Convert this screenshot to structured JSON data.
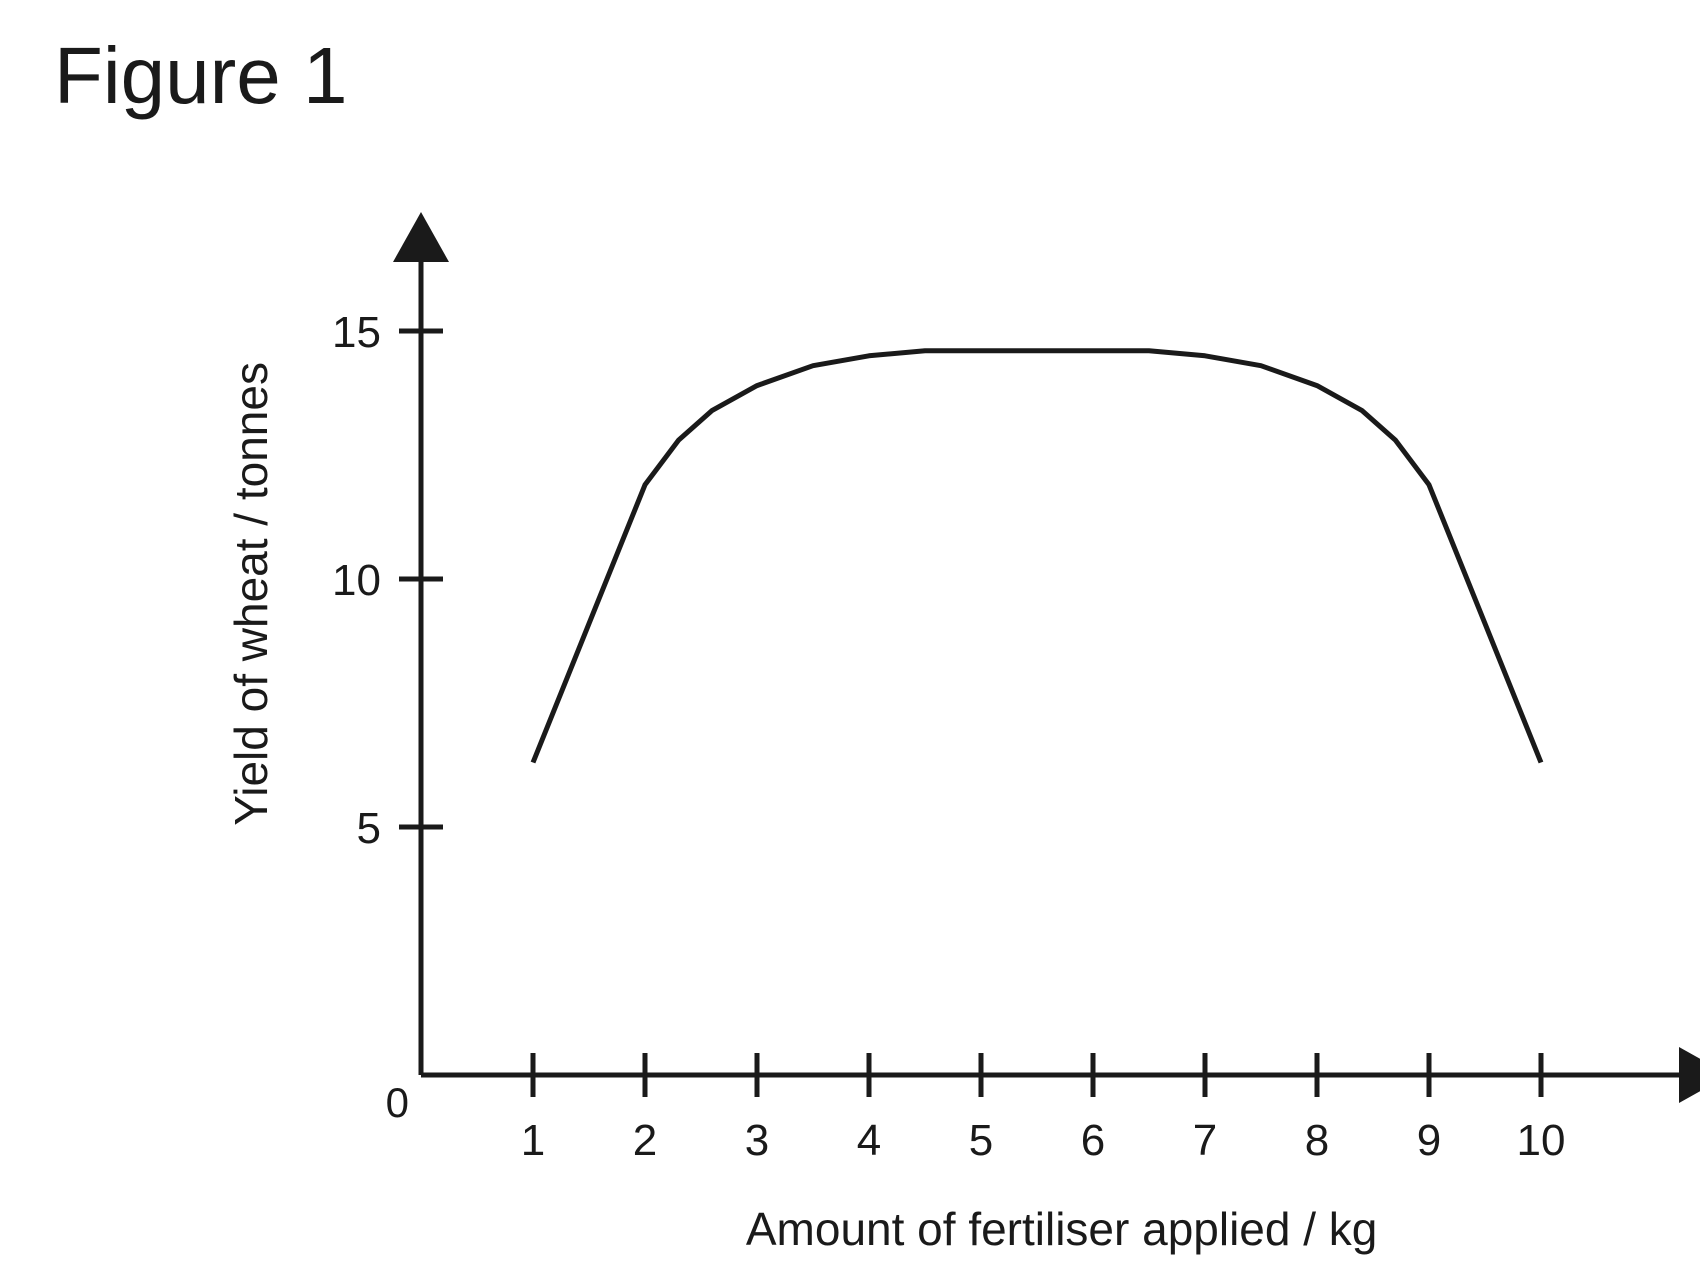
{
  "figure_title": "Figure 1",
  "chart_data": {
    "type": "line",
    "xlabel": "Amount of fertiliser applied / kg",
    "ylabel": "Yield of wheat / tonnes",
    "xlim": [
      0,
      11.5
    ],
    "ylim": [
      0,
      17.5
    ],
    "x_ticks": [
      1,
      2,
      3,
      4,
      5,
      6,
      7,
      8,
      9,
      10
    ],
    "y_ticks": [
      5,
      10,
      15
    ],
    "origin_label": "0",
    "grid": false,
    "legend": "none",
    "series": [
      {
        "color": "#1a1a1a",
        "points": [
          [
            1,
            6.3
          ],
          [
            1.5,
            9.1
          ],
          [
            2,
            11.9
          ],
          [
            2.3,
            12.8
          ],
          [
            2.6,
            13.4
          ],
          [
            3,
            13.9
          ],
          [
            3.5,
            14.3
          ],
          [
            4,
            14.5
          ],
          [
            4.5,
            14.6
          ],
          [
            5,
            14.6
          ],
          [
            5.5,
            14.6
          ],
          [
            6,
            14.6
          ],
          [
            6.5,
            14.6
          ],
          [
            7,
            14.5
          ],
          [
            7.5,
            14.3
          ],
          [
            8,
            13.9
          ],
          [
            8.4,
            13.4
          ],
          [
            8.7,
            12.8
          ],
          [
            9,
            11.9
          ],
          [
            9.5,
            9.1
          ],
          [
            10,
            6.3
          ]
        ]
      }
    ]
  }
}
